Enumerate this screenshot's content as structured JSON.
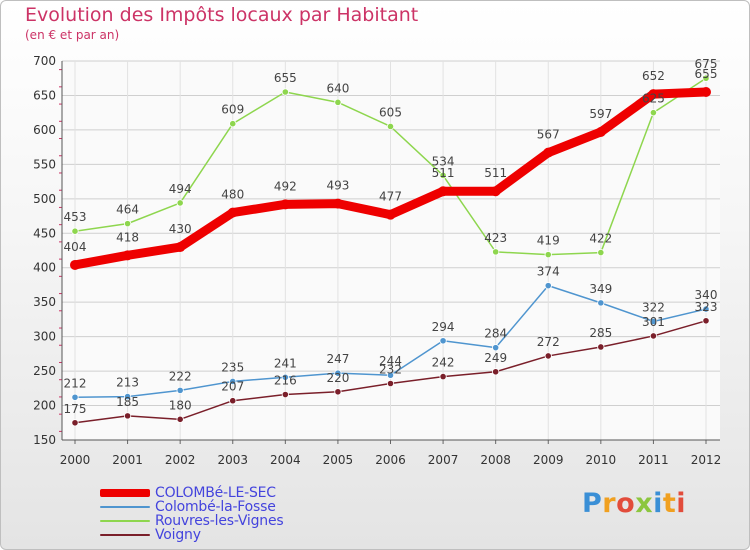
{
  "title": "Evolution des Impôts locaux par Habitant",
  "subtitle": "(en € et par an)",
  "brand": "Proxiti",
  "chart_data": {
    "type": "line",
    "x": [
      "2000",
      "2001",
      "2002",
      "2003",
      "2004",
      "2005",
      "2006",
      "2007",
      "2008",
      "2009",
      "2010",
      "2011",
      "2012"
    ],
    "ylim": [
      150,
      700
    ],
    "yticks": [
      150,
      200,
      250,
      300,
      350,
      400,
      450,
      500,
      550,
      600,
      650,
      700
    ],
    "grid": true,
    "legend_position": "bottom-left",
    "series": [
      {
        "name": "COLOMBé-LE-SEC",
        "color": "#ee0000",
        "values": [
          404,
          418,
          430,
          480,
          492,
          493,
          477,
          511,
          511,
          567,
          597,
          652,
          655
        ]
      },
      {
        "name": "Colombé-la-Fosse",
        "color": "#4f95cf",
        "values": [
          212,
          213,
          222,
          235,
          241,
          247,
          244,
          294,
          284,
          374,
          349,
          322,
          340
        ]
      },
      {
        "name": "Rouvres-les-Vignes",
        "color": "#8ed64e",
        "values": [
          453,
          464,
          494,
          609,
          655,
          640,
          605,
          534,
          423,
          419,
          422,
          625,
          675
        ]
      },
      {
        "name": "Voigny",
        "color": "#7a1f2a",
        "values": [
          175,
          185,
          180,
          207,
          216,
          220,
          232,
          242,
          249,
          272,
          285,
          301,
          323
        ]
      }
    ],
    "value_labels": [
      [
        "404",
        "418",
        "430",
        "480",
        "492",
        "493",
        "477",
        "511",
        "511",
        "567",
        "597",
        "652",
        "655"
      ],
      [
        "212",
        "213",
        "222",
        "235",
        "241",
        "247",
        "244",
        "294",
        "284",
        "374",
        "349",
        "322",
        "340"
      ],
      [
        "453",
        "464",
        "494",
        "609",
        "655",
        "640",
        "605",
        "534",
        "423",
        "419",
        "422",
        "625",
        "675"
      ],
      [
        "175",
        "185",
        "180",
        "207",
        "216",
        "220",
        "232",
        "242",
        "249",
        "272",
        "285",
        "301",
        "323"
      ]
    ]
  }
}
